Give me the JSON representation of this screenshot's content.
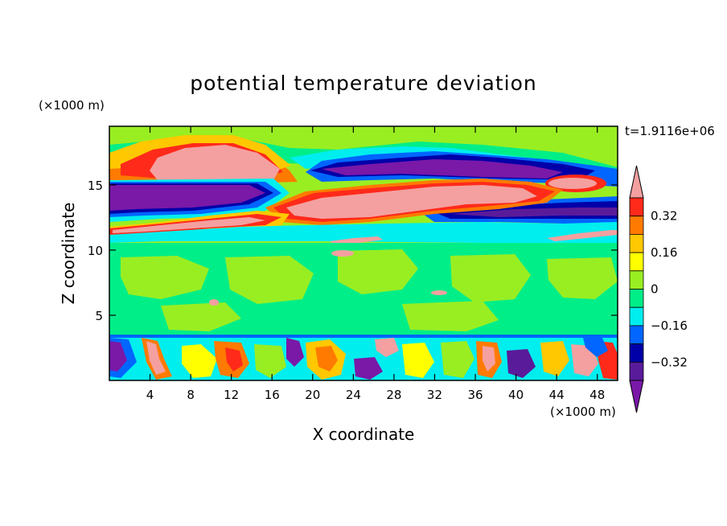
{
  "chart_data": {
    "type": "heatmap",
    "title": "potential temperature deviation",
    "xlabel": "X coordinate",
    "ylabel": "Z coordinate",
    "x_unit": "(×1000 m)",
    "y_unit": "(×1000 m)",
    "time_label": "t=1.9116e+06",
    "xlim": [
      0,
      50
    ],
    "ylim": [
      0,
      19.5
    ],
    "x_ticks": [
      4,
      8,
      12,
      16,
      20,
      24,
      28,
      32,
      36,
      40,
      44,
      48
    ],
    "y_ticks": [
      5,
      10,
      15
    ],
    "colorbar": {
      "levels": [
        -0.4,
        -0.32,
        -0.24,
        -0.16,
        -0.08,
        0,
        0.08,
        0.16,
        0.24,
        0.32,
        0.4
      ],
      "tick_labels": [
        "0.32",
        "0.16",
        "0",
        "−0.16",
        "−0.32"
      ],
      "tick_values": [
        0.32,
        0.16,
        0,
        -0.16,
        -0.32
      ],
      "colors_top_to_bottom": [
        "#f4a0a0",
        "#ff2a1a",
        "#ff7a00",
        "#ffc800",
        "#ffff00",
        "#99ee22",
        "#00ee88",
        "#00eeee",
        "#0066ff",
        "#0000a8",
        "#5a1b9a",
        "#7a18a8"
      ],
      "extend": "both"
    }
  }
}
